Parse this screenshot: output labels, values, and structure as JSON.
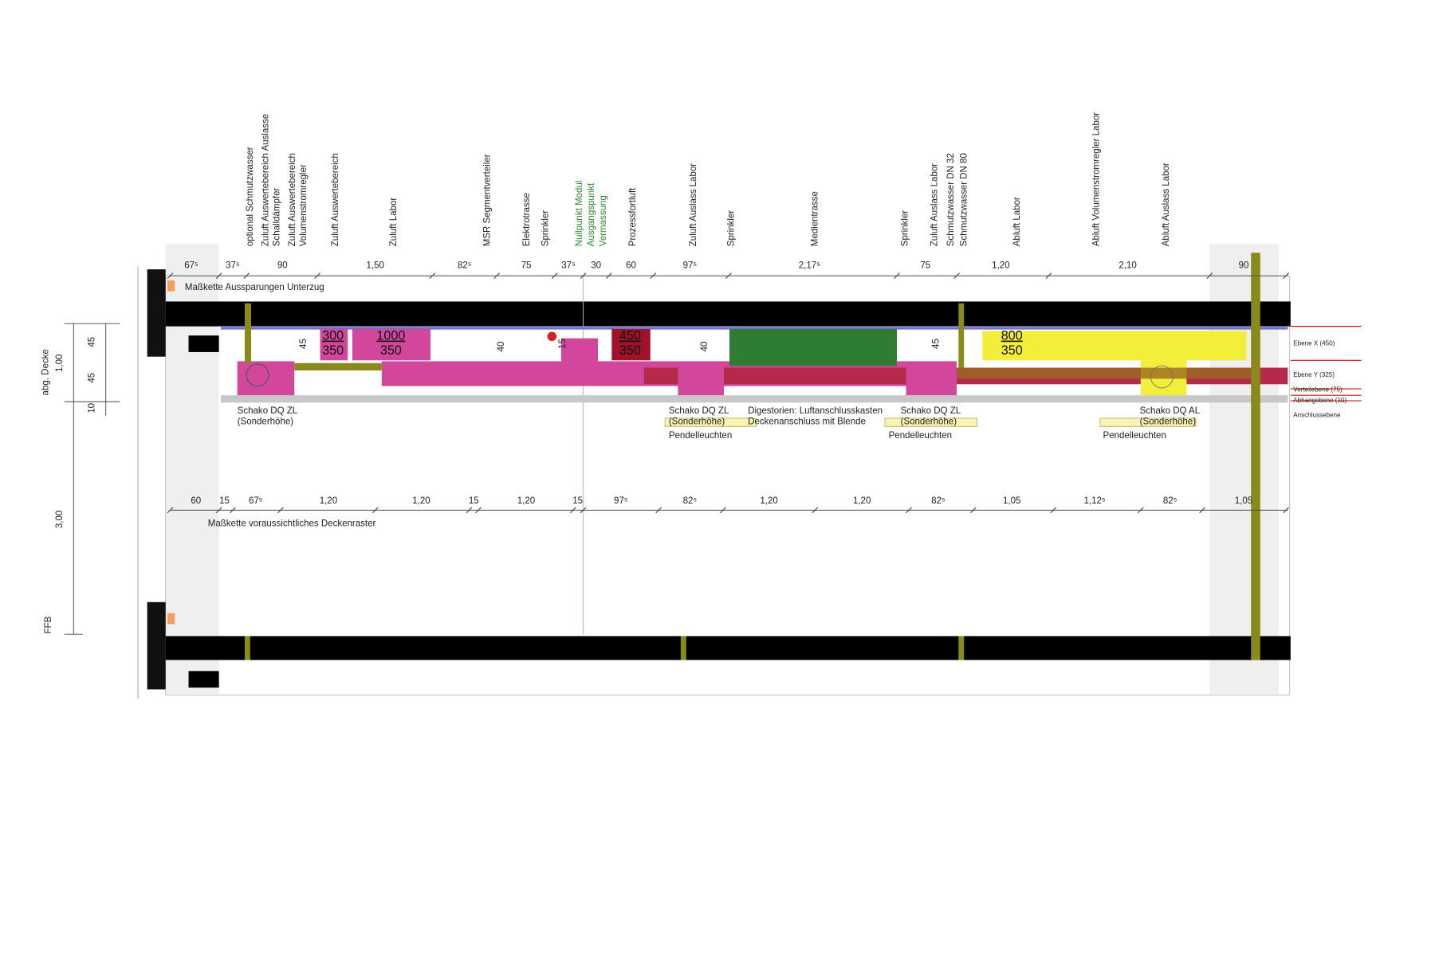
{
  "labels": [
    "optional Schmutzwasser",
    "Zuluft Auswertebereich Auslasse",
    "Schalldämpfer",
    "Zuluft Auswertebereich",
    "Volumenstromregler",
    "Zuluft Auswertebereich",
    "Zuluft Labor",
    "MSR Segmentverteiler",
    "Elektrotrasse",
    "Sprinkler",
    "Prozessfortluft",
    "Zuluft Auslass Labor",
    "Sprinkler",
    "Medientrasse",
    "Sprinkler",
    "Zuluft Auslass Labor",
    "Schmutzwasser DN 32",
    "Schmutzwasser DN 80",
    "Abluft Labor",
    "Abluft  Volumenstromregler Labor",
    "Abluft Auslass Labor"
  ],
  "zero_point": [
    "Nullpunkt Modul",
    "Ausgangspunkt",
    "Vermassung"
  ],
  "top_dimensions": {
    "title": "Maßkette Aussparungen Unterzug",
    "values": [
      "67⁵",
      "37⁵",
      "90",
      "1,50",
      "82⁵",
      "75",
      "37⁵",
      "30",
      "60",
      "97⁵",
      "2,17⁵",
      "75",
      "1,20",
      "2,10",
      "90"
    ]
  },
  "bottom_dimensions": {
    "title": "Maßkette voraussichtliches Deckenraster",
    "values": [
      "60",
      "15",
      "67⁵",
      "1,20",
      "1,20",
      "15",
      "1,20",
      "15",
      "97⁵",
      "82⁵",
      "1,20",
      "1,20",
      "82⁵",
      "1,05",
      "1,12⁵",
      "82⁵",
      "1,05"
    ]
  },
  "duct_sizes": [
    {
      "top": "300",
      "bottom": "350"
    },
    {
      "top": "1000",
      "bottom": "350"
    },
    {
      "top": "450",
      "bottom": "350"
    },
    {
      "top": "800",
      "bottom": "350"
    }
  ],
  "duct_heights": [
    "45",
    "40",
    "15",
    "40",
    "45"
  ],
  "annotations": [
    "Schako DQ ZL",
    "(Sonderhöhe)",
    "Schako DQ ZL",
    "(Sonderhöhe)",
    "Pendelleuchten",
    "Digestorien: Luftanschlusskasten",
    "Deckenanschluss mit Blende",
    "Schako DQ ZL",
    "(Sonderhöhe)",
    "Pendelleuchten",
    "Schako DQ AL",
    "(Sonderhöhe)",
    "Pendelleuchten"
  ],
  "levels": [
    "Ebene X (450)",
    "Ebene Y (325)",
    "Verteilebene (75)",
    "Abhangebene (10)",
    "Anschlussebene"
  ],
  "left_dimensions": [
    "abg. Decke",
    "1,00",
    "45",
    "45",
    "10",
    "3,00",
    "FFB"
  ]
}
